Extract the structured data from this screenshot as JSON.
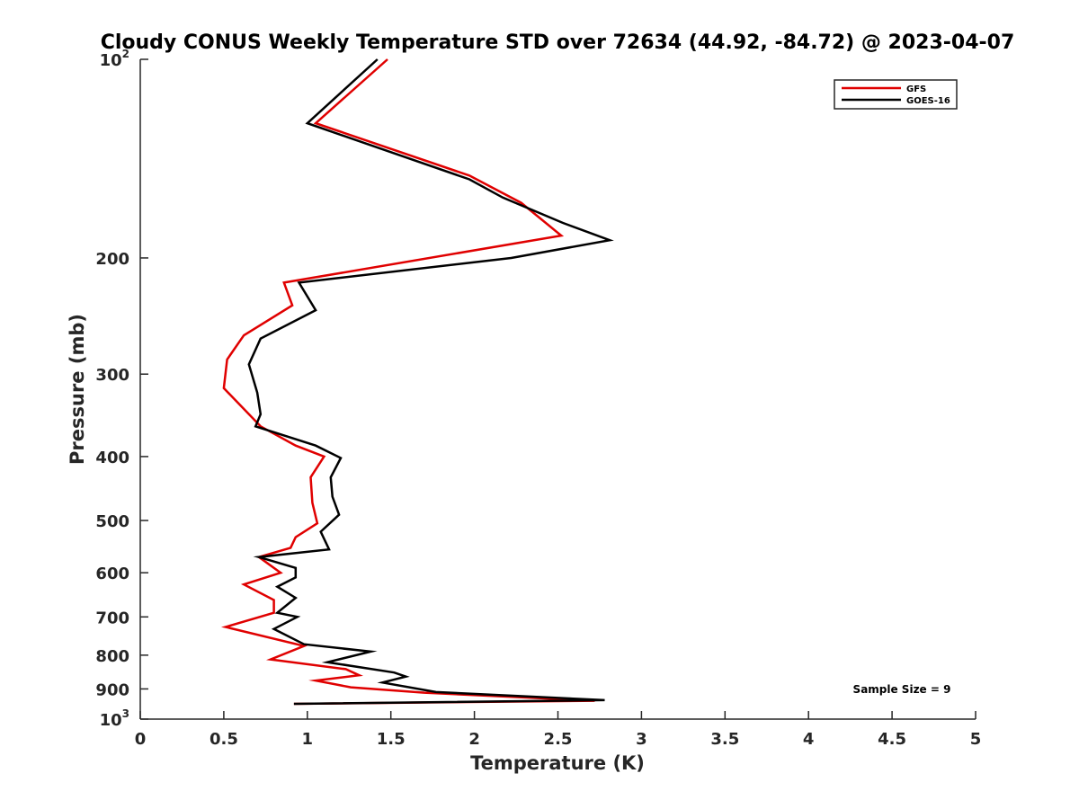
{
  "chart_data": {
    "type": "line",
    "title": "Cloudy CONUS Weekly Temperature STD over 72634 (44.92, -84.72) @ 2023-04-07",
    "xlabel": "Temperature (K)",
    "ylabel": "Pressure (mb)",
    "xlim": [
      0,
      5
    ],
    "ylim": [
      100,
      1000
    ],
    "y_scale": "log",
    "y_reversed": true,
    "grid": false,
    "legend_position": "top-right",
    "x_ticks": [
      "0",
      "0.5",
      "1",
      "1.5",
      "2",
      "2.5",
      "3",
      "3.5",
      "4",
      "4.5",
      "5"
    ],
    "y_ticks": [
      {
        "value": 100,
        "base": "10",
        "exp": "2"
      },
      {
        "value": 200,
        "label": "200"
      },
      {
        "value": 300,
        "label": "300"
      },
      {
        "value": 400,
        "label": "400"
      },
      {
        "value": 500,
        "label": "500"
      },
      {
        "value": 600,
        "label": "600"
      },
      {
        "value": 700,
        "label": "700"
      },
      {
        "value": 800,
        "label": "800"
      },
      {
        "value": 900,
        "label": "900"
      },
      {
        "value": 1000,
        "base": "10",
        "exp": "3"
      }
    ],
    "annotation": "Sample Size = 9",
    "series": [
      {
        "name": "GFS",
        "color": "#e00000",
        "points": [
          [
            1.48,
            100
          ],
          [
            1.05,
            125
          ],
          [
            1.97,
            150
          ],
          [
            2.28,
            165
          ],
          [
            2.52,
            185
          ],
          [
            0.86,
            218
          ],
          [
            0.91,
            236
          ],
          [
            0.62,
            262
          ],
          [
            0.52,
            285
          ],
          [
            0.5,
            315
          ],
          [
            0.65,
            345
          ],
          [
            0.72,
            360
          ],
          [
            0.93,
            385
          ],
          [
            1.1,
            400
          ],
          [
            1.02,
            430
          ],
          [
            1.03,
            470
          ],
          [
            1.06,
            505
          ],
          [
            0.93,
            530
          ],
          [
            0.9,
            550
          ],
          [
            0.71,
            568
          ],
          [
            0.84,
            600
          ],
          [
            0.62,
            625
          ],
          [
            0.8,
            660
          ],
          [
            0.8,
            690
          ],
          [
            0.51,
            725
          ],
          [
            0.98,
            775
          ],
          [
            0.78,
            812
          ],
          [
            1.23,
            840
          ],
          [
            1.31,
            858
          ],
          [
            1.05,
            874
          ],
          [
            1.26,
            895
          ],
          [
            1.7,
            912
          ],
          [
            2.72,
            938
          ],
          [
            0.92,
            948
          ]
        ]
      },
      {
        "name": "GOES-16",
        "color": "#000000",
        "points": [
          [
            1.42,
            100
          ],
          [
            1.0,
            125
          ],
          [
            1.97,
            152
          ],
          [
            2.17,
            162
          ],
          [
            2.53,
            177
          ],
          [
            2.81,
            188
          ],
          [
            2.22,
            200
          ],
          [
            0.95,
            218
          ],
          [
            1.05,
            240
          ],
          [
            0.72,
            265
          ],
          [
            0.65,
            290
          ],
          [
            0.7,
            320
          ],
          [
            0.72,
            345
          ],
          [
            0.69,
            360
          ],
          [
            1.05,
            385
          ],
          [
            1.2,
            402
          ],
          [
            1.14,
            430
          ],
          [
            1.15,
            460
          ],
          [
            1.19,
            490
          ],
          [
            1.08,
            520
          ],
          [
            1.13,
            553
          ],
          [
            0.71,
            568
          ],
          [
            0.93,
            590
          ],
          [
            0.93,
            610
          ],
          [
            0.82,
            630
          ],
          [
            0.93,
            655
          ],
          [
            0.82,
            690
          ],
          [
            0.94,
            700
          ],
          [
            0.8,
            730
          ],
          [
            0.98,
            770
          ],
          [
            1.38,
            790
          ],
          [
            1.12,
            820
          ],
          [
            1.52,
            850
          ],
          [
            1.59,
            862
          ],
          [
            1.45,
            880
          ],
          [
            1.77,
            910
          ],
          [
            2.78,
            936
          ],
          [
            0.92,
            948
          ]
        ]
      }
    ]
  }
}
